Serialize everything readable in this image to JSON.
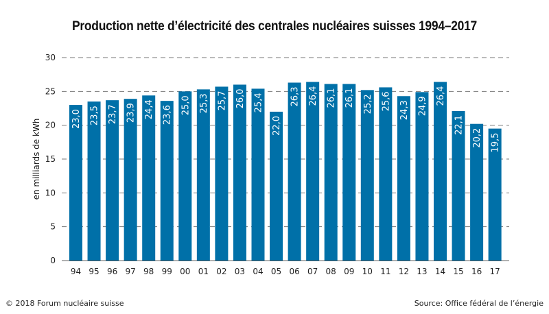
{
  "chart_data": {
    "type": "bar",
    "title": "Production nette d’électricité des centrales nucléaires suisses 1994–2017",
    "xlabel": "",
    "ylabel": "en milliards de kWh",
    "ylim": [
      0,
      30
    ],
    "yticks": [
      0,
      5,
      10,
      15,
      20,
      25,
      30
    ],
    "grid": true,
    "categories": [
      "94",
      "95",
      "96",
      "97",
      "98",
      "99",
      "00",
      "01",
      "02",
      "03",
      "04",
      "05",
      "06",
      "07",
      "08",
      "09",
      "10",
      "11",
      "12",
      "13",
      "14",
      "15",
      "16",
      "17"
    ],
    "values": [
      23.0,
      23.5,
      23.7,
      23.9,
      24.4,
      23.6,
      25.0,
      25.3,
      25.7,
      26.0,
      25.4,
      22.0,
      26.3,
      26.4,
      26.1,
      26.1,
      25.2,
      25.6,
      24.3,
      24.9,
      26.4,
      22.1,
      20.2,
      19.5
    ],
    "value_labels": [
      "23,0",
      "23,5",
      "23,7",
      "23,9",
      "24,4",
      "23,6",
      "25,0",
      "25,3",
      "25,7",
      "26,0",
      "25,4",
      "22,0",
      "26,3",
      "26,4",
      "26,1",
      "26,1",
      "25,2",
      "25,6",
      "24,3",
      "24,9",
      "26,4",
      "22,1",
      "20,2",
      "19,5"
    ],
    "bar_color": "#0070a8",
    "label_color": "#ffffff"
  },
  "footer": {
    "copyright": "© 2018 Forum nucléaire suisse",
    "source": "Source: Office fédéral de l’énergie"
  }
}
